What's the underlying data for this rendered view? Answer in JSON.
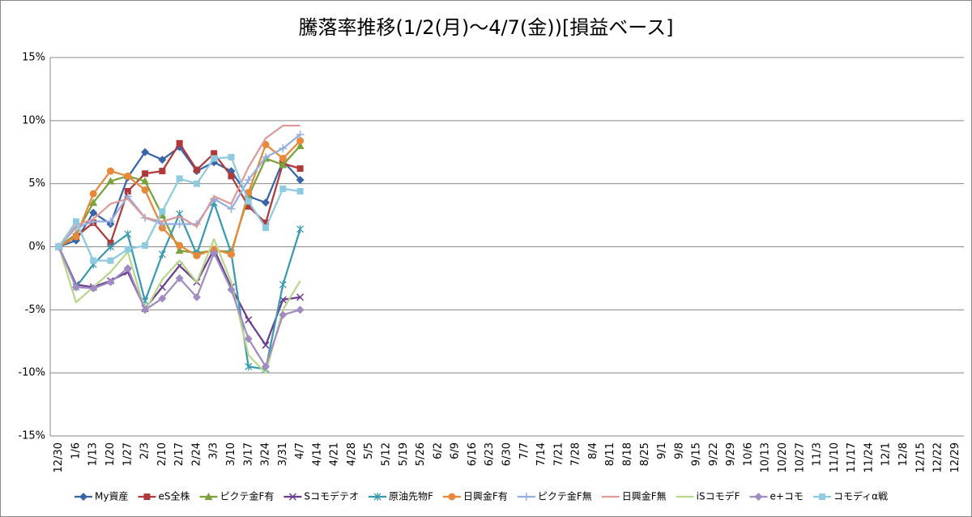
{
  "chart_data": {
    "type": "line",
    "title": "騰落率推移(1/2(月)～4/7(金))[損益ベース]",
    "categories": [
      "12/30",
      "1/6",
      "1/13",
      "1/20",
      "1/27",
      "2/3",
      "2/10",
      "2/17",
      "2/24",
      "3/3",
      "3/10",
      "3/17",
      "3/24",
      "3/31",
      "4/7",
      "4/14",
      "4/21",
      "4/28",
      "5/5",
      "5/12",
      "5/19",
      "5/26",
      "6/2",
      "6/9",
      "6/16",
      "6/23",
      "6/30",
      "7/7",
      "7/14",
      "7/21",
      "7/28",
      "8/4",
      "8/11",
      "8/18",
      "8/25",
      "9/1",
      "9/8",
      "9/15",
      "9/22",
      "9/29",
      "10/6",
      "10/13",
      "10/20",
      "10/27",
      "11/3",
      "11/10",
      "11/17",
      "11/24",
      "12/1",
      "12/8",
      "12/15",
      "12/22",
      "12/29"
    ],
    "ylim": [
      -15,
      15
    ],
    "yticks": [
      {
        "value": -15,
        "label": "-15%"
      },
      {
        "value": -10,
        "label": "-10%"
      },
      {
        "value": -5,
        "label": "-5%"
      },
      {
        "value": 0,
        "label": "0%"
      },
      {
        "value": 5,
        "label": "5%"
      },
      {
        "value": 10,
        "label": "10%"
      },
      {
        "value": 15,
        "label": "15%"
      }
    ],
    "grid": true,
    "legend": "bottom",
    "series": [
      {
        "name": "My資産",
        "color": "#3a64a8",
        "marker": "diamond",
        "values": [
          0,
          0.5,
          2.7,
          1.8,
          5.5,
          7.5,
          6.9,
          7.9,
          6.0,
          6.7,
          6.0,
          4.0,
          3.5,
          6.8,
          5.3,
          null,
          null,
          null,
          null,
          null,
          null,
          null,
          null,
          null,
          null,
          null,
          null,
          null,
          null,
          null,
          null,
          null,
          null,
          null,
          null,
          null,
          null,
          null,
          null,
          null,
          null,
          null,
          null,
          null,
          null,
          null,
          null,
          null,
          null,
          null,
          null,
          null,
          null
        ]
      },
      {
        "name": "eS全株",
        "color": "#b03a3a",
        "marker": "square",
        "values": [
          0,
          0.8,
          1.9,
          0.3,
          4.4,
          5.8,
          6.0,
          8.2,
          6.1,
          7.4,
          5.6,
          3.2,
          1.9,
          6.6,
          6.2,
          null,
          null,
          null,
          null,
          null,
          null,
          null,
          null,
          null,
          null,
          null,
          null,
          null,
          null,
          null,
          null,
          null,
          null,
          null,
          null,
          null,
          null,
          null,
          null,
          null,
          null,
          null,
          null,
          null,
          null,
          null,
          null,
          null,
          null,
          null,
          null,
          null,
          null
        ]
      },
      {
        "name": "ピクテ金F有",
        "color": "#7aa13a",
        "marker": "triangle",
        "values": [
          0,
          1.0,
          3.5,
          5.2,
          5.6,
          5.2,
          2.5,
          -0.3,
          -0.5,
          -0.3,
          -0.4,
          4.0,
          7.0,
          6.5,
          8.0,
          null,
          null,
          null,
          null,
          null,
          null,
          null,
          null,
          null,
          null,
          null,
          null,
          null,
          null,
          null,
          null,
          null,
          null,
          null,
          null,
          null,
          null,
          null,
          null,
          null,
          null,
          null,
          null,
          null,
          null,
          null,
          null,
          null,
          null,
          null,
          null,
          null,
          null
        ]
      },
      {
        "name": "Sコモデテオ",
        "color": "#6a3d8f",
        "marker": "x",
        "values": [
          0,
          -3.0,
          -3.2,
          -2.7,
          -2.0,
          -4.9,
          -3.2,
          -1.5,
          -2.8,
          -0.2,
          -3.2,
          -5.8,
          -7.8,
          -4.2,
          -4.0,
          null,
          null,
          null,
          null,
          null,
          null,
          null,
          null,
          null,
          null,
          null,
          null,
          null,
          null,
          null,
          null,
          null,
          null,
          null,
          null,
          null,
          null,
          null,
          null,
          null,
          null,
          null,
          null,
          null,
          null,
          null,
          null,
          null,
          null,
          null,
          null,
          null,
          null
        ]
      },
      {
        "name": "原油先物F",
        "color": "#3a9ab0",
        "marker": "asterisk",
        "values": [
          0,
          -3.2,
          -1.4,
          0,
          1.0,
          -4.3,
          -0.6,
          2.6,
          -0.6,
          3.5,
          -0.5,
          -9.5,
          -9.7,
          -3.0,
          1.4,
          null,
          null,
          null,
          null,
          null,
          null,
          null,
          null,
          null,
          null,
          null,
          null,
          null,
          null,
          null,
          null,
          null,
          null,
          null,
          null,
          null,
          null,
          null,
          null,
          null,
          null,
          null,
          null,
          null,
          null,
          null,
          null,
          null,
          null,
          null,
          null,
          null,
          null
        ]
      },
      {
        "name": "日興金F有",
        "color": "#e8883a",
        "marker": "circle",
        "values": [
          0,
          0.8,
          4.2,
          6.0,
          5.6,
          4.5,
          1.5,
          0.1,
          -0.7,
          -0.2,
          -0.6,
          4.3,
          8.1,
          7.0,
          8.4,
          null,
          null,
          null,
          null,
          null,
          null,
          null,
          null,
          null,
          null,
          null,
          null,
          null,
          null,
          null,
          null,
          null,
          null,
          null,
          null,
          null,
          null,
          null,
          null,
          null,
          null,
          null,
          null,
          null,
          null,
          null,
          null,
          null,
          null,
          null,
          null,
          null,
          null
        ]
      },
      {
        "name": "ピクテ金F無",
        "color": "#94aee0",
        "marker": "plus",
        "values": [
          0,
          1.5,
          2.0,
          2.0,
          4.0,
          2.3,
          1.8,
          1.8,
          1.8,
          3.8,
          3.0,
          5.3,
          7.1,
          7.8,
          8.9,
          null,
          null,
          null,
          null,
          null,
          null,
          null,
          null,
          null,
          null,
          null,
          null,
          null,
          null,
          null,
          null,
          null,
          null,
          null,
          null,
          null,
          null,
          null,
          null,
          null,
          null,
          null,
          null,
          null,
          null,
          null,
          null,
          null,
          null,
          null,
          null,
          null,
          null
        ]
      },
      {
        "name": "日興金F無",
        "color": "#dd9a9a",
        "marker": "none",
        "values": [
          0,
          1.7,
          2.2,
          3.4,
          3.8,
          2.3,
          2.0,
          2.4,
          1.6,
          4.0,
          3.4,
          6.3,
          8.6,
          9.6,
          9.6,
          null,
          null,
          null,
          null,
          null,
          null,
          null,
          null,
          null,
          null,
          null,
          null,
          null,
          null,
          null,
          null,
          null,
          null,
          null,
          null,
          null,
          null,
          null,
          null,
          null,
          null,
          null,
          null,
          null,
          null,
          null,
          null,
          null,
          null,
          null,
          null,
          null,
          null
        ]
      },
      {
        "name": "iSコモデF",
        "color": "#b8d68c",
        "marker": "none",
        "values": [
          0,
          -4.4,
          -3.2,
          -2.0,
          -0.4,
          -5.1,
          -2.6,
          -1.1,
          -2.8,
          0.6,
          -2.8,
          -8.6,
          -10.0,
          -5.0,
          -2.7,
          null,
          null,
          null,
          null,
          null,
          null,
          null,
          null,
          null,
          null,
          null,
          null,
          null,
          null,
          null,
          null,
          null,
          null,
          null,
          null,
          null,
          null,
          null,
          null,
          null,
          null,
          null,
          null,
          null,
          null,
          null,
          null,
          null,
          null,
          null,
          null,
          null,
          null
        ]
      },
      {
        "name": "e+コモ",
        "color": "#a08cc0",
        "marker": "diamond",
        "values": [
          0,
          -3.2,
          -3.3,
          -2.8,
          -1.7,
          -5.0,
          -4.1,
          -2.5,
          -4.0,
          -0.5,
          -3.4,
          -7.3,
          -9.5,
          -5.4,
          -5.0,
          null,
          null,
          null,
          null,
          null,
          null,
          null,
          null,
          null,
          null,
          null,
          null,
          null,
          null,
          null,
          null,
          null,
          null,
          null,
          null,
          null,
          null,
          null,
          null,
          null,
          null,
          null,
          null,
          null,
          null,
          null,
          null,
          null,
          null,
          null,
          null,
          null,
          null
        ]
      },
      {
        "name": "コモディα戦",
        "color": "#8ecae0",
        "marker": "square",
        "values": [
          0,
          2.0,
          -1.1,
          -1.1,
          -0.2,
          0.1,
          2.8,
          5.4,
          5.0,
          7.0,
          7.1,
          3.6,
          1.5,
          4.6,
          4.4,
          null,
          null,
          null,
          null,
          null,
          null,
          null,
          null,
          null,
          null,
          null,
          null,
          null,
          null,
          null,
          null,
          null,
          null,
          null,
          null,
          null,
          null,
          null,
          null,
          null,
          null,
          null,
          null,
          null,
          null,
          null,
          null,
          null,
          null,
          null,
          null,
          null,
          null
        ]
      }
    ]
  }
}
